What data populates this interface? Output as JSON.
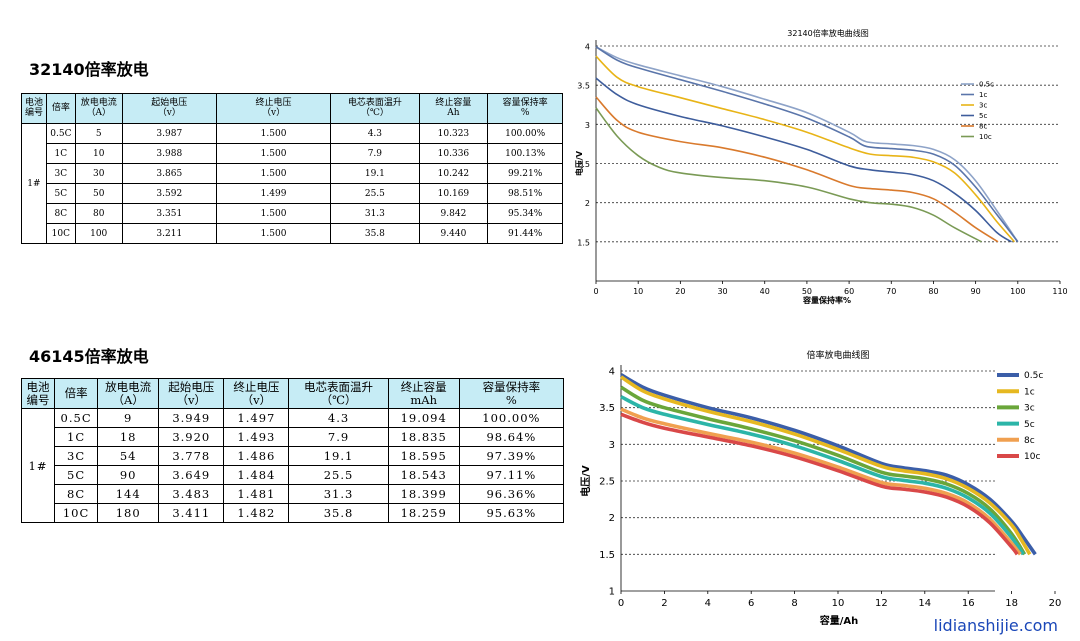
{
  "sections": [
    {
      "title": "32140倍率放电",
      "table": {
        "headers": [
          "电池\n编号",
          "倍率",
          "放电电流\n（A）",
          "起始电压\n（v）",
          "终止电压\n（v）",
          "电芯表面温升\n（℃）",
          "终止容量\nAh",
          "容量保持率\n%"
        ],
        "cell_id": "1#",
        "rows": [
          [
            "0.5C",
            "5",
            "3.987",
            "1.500",
            "4.3",
            "10.323",
            "100.00%"
          ],
          [
            "1C",
            "10",
            "3.988",
            "1.500",
            "7.9",
            "10.336",
            "100.13%"
          ],
          [
            "3C",
            "30",
            "3.865",
            "1.500",
            "19.1",
            "10.242",
            "99.21%"
          ],
          [
            "5C",
            "50",
            "3.592",
            "1.499",
            "25.5",
            "10.169",
            "98.51%"
          ],
          [
            "8C",
            "80",
            "3.351",
            "1.500",
            "31.3",
            "9.842",
            "95.34%"
          ],
          [
            "10C",
            "100",
            "3.211",
            "1.500",
            "35.8",
            "9.440",
            "91.44%"
          ]
        ]
      }
    },
    {
      "title": "46145倍率放电",
      "table": {
        "headers": [
          "电池\n编号",
          "倍率",
          "放电电流\n（A）",
          "起始电压\n（v）",
          "终止电压\n（v）",
          "电芯表面温升\n（℃）",
          "终止容量\nmAh",
          "容量保持率\n%"
        ],
        "cell_id": "1#",
        "rows": [
          [
            "0.5C",
            "9",
            "3.949",
            "1.497",
            "4.3",
            "19.094",
            "100.00%"
          ],
          [
            "1C",
            "18",
            "3.920",
            "1.493",
            "7.9",
            "18.835",
            "98.64%"
          ],
          [
            "3C",
            "54",
            "3.778",
            "1.486",
            "19.1",
            "18.595",
            "97.39%"
          ],
          [
            "5C",
            "90",
            "3.649",
            "1.484",
            "25.5",
            "18.543",
            "97.11%"
          ],
          [
            "8C",
            "144",
            "3.483",
            "1.481",
            "31.3",
            "18.399",
            "96.36%"
          ],
          [
            "10C",
            "180",
            "3.411",
            "1.482",
            "35.8",
            "18.259",
            "95.63%"
          ]
        ]
      }
    }
  ],
  "watermark": "lidianshijie.com",
  "chart_data": [
    {
      "type": "line",
      "title": "32140倍率放电曲线图",
      "xlabel": "容量保持率%",
      "ylabel": "电压/V",
      "xlim": [
        0,
        110
      ],
      "ylim": [
        1,
        4
      ],
      "xticks": [
        0,
        10,
        20,
        30,
        40,
        50,
        60,
        70,
        80,
        90,
        100,
        110
      ],
      "yticks": [
        1.5,
        2,
        2.5,
        3,
        3.5,
        4
      ],
      "ytick_labels": [
        "1.5",
        "2",
        "2.5",
        "3",
        "3.5",
        "4"
      ],
      "grid": "horizontal dotted",
      "legend": "right",
      "series": [
        {
          "name": "0.5c",
          "color": "#8ea3c8",
          "x": [
            0,
            5,
            10,
            20,
            30,
            40,
            50,
            60,
            64,
            70,
            75,
            80,
            85,
            90,
            95,
            100
          ],
          "y": [
            3.99,
            3.85,
            3.76,
            3.62,
            3.48,
            3.32,
            3.15,
            2.9,
            2.78,
            2.75,
            2.73,
            2.68,
            2.55,
            2.28,
            1.9,
            1.5
          ]
        },
        {
          "name": "1c",
          "color": "#5a75aa",
          "x": [
            0,
            5,
            10,
            20,
            30,
            40,
            50,
            60,
            64,
            70,
            75,
            80,
            85,
            90,
            95,
            100
          ],
          "y": [
            3.99,
            3.82,
            3.72,
            3.57,
            3.42,
            3.26,
            3.08,
            2.84,
            2.72,
            2.69,
            2.67,
            2.62,
            2.48,
            2.2,
            1.85,
            1.5
          ]
        },
        {
          "name": "3c",
          "color": "#e8b417",
          "x": [
            0,
            5,
            10,
            20,
            30,
            40,
            50,
            60,
            65,
            70,
            75,
            80,
            85,
            90,
            95,
            99.2
          ],
          "y": [
            3.87,
            3.6,
            3.48,
            3.34,
            3.2,
            3.06,
            2.9,
            2.7,
            2.62,
            2.6,
            2.58,
            2.52,
            2.38,
            2.1,
            1.76,
            1.5
          ]
        },
        {
          "name": "5c",
          "color": "#3e5d9c",
          "x": [
            0,
            5,
            10,
            20,
            30,
            40,
            50,
            60,
            65,
            70,
            75,
            80,
            85,
            90,
            95,
            98.5
          ],
          "y": [
            3.59,
            3.38,
            3.25,
            3.1,
            2.98,
            2.84,
            2.68,
            2.47,
            2.42,
            2.39,
            2.36,
            2.28,
            2.12,
            1.9,
            1.62,
            1.5
          ]
        },
        {
          "name": "8c",
          "color": "#d97a2d",
          "x": [
            0,
            5,
            10,
            20,
            30,
            40,
            50,
            60,
            65,
            70,
            75,
            80,
            85,
            90,
            95.3
          ],
          "y": [
            3.35,
            3.05,
            2.9,
            2.78,
            2.7,
            2.58,
            2.42,
            2.22,
            2.18,
            2.16,
            2.13,
            2.05,
            1.88,
            1.68,
            1.5
          ]
        },
        {
          "name": "10c",
          "color": "#7a9a55",
          "x": [
            0,
            5,
            10,
            15,
            20,
            30,
            40,
            50,
            60,
            65,
            70,
            75,
            80,
            85,
            91.4
          ],
          "y": [
            3.21,
            2.85,
            2.6,
            2.45,
            2.38,
            2.32,
            2.28,
            2.2,
            2.05,
            2.0,
            1.98,
            1.94,
            1.84,
            1.68,
            1.5
          ]
        }
      ]
    },
    {
      "type": "line",
      "title": "倍率放电曲线图",
      "xlabel": "容量/Ah",
      "ylabel": "电压/V",
      "xlim": [
        0,
        20
      ],
      "ylim": [
        1,
        4
      ],
      "xticks": [
        0,
        2,
        4,
        6,
        8,
        10,
        12,
        14,
        16,
        18,
        20
      ],
      "yticks": [
        1,
        1.5,
        2,
        2.5,
        3,
        3.5,
        4
      ],
      "ytick_labels": [
        "1",
        "1.5",
        "2",
        "2.5",
        "3",
        "3.5",
        "4"
      ],
      "grid": "horizontal dotted",
      "legend": "right",
      "series": [
        {
          "name": "0.5c",
          "color": "#3b5ea8",
          "x": [
            0,
            1,
            2,
            4,
            6,
            8,
            10,
            12,
            13,
            14,
            15,
            16,
            17,
            18,
            18.5,
            19.09
          ],
          "y": [
            3.95,
            3.78,
            3.67,
            3.5,
            3.36,
            3.19,
            2.98,
            2.74,
            2.68,
            2.64,
            2.58,
            2.45,
            2.25,
            1.95,
            1.75,
            1.5
          ]
        },
        {
          "name": "1c",
          "color": "#e6b820",
          "x": [
            0,
            1,
            2,
            4,
            6,
            8,
            10,
            12,
            13,
            14,
            15,
            16,
            17,
            18,
            18.4,
            18.84
          ],
          "y": [
            3.92,
            3.73,
            3.62,
            3.45,
            3.31,
            3.14,
            2.93,
            2.7,
            2.64,
            2.6,
            2.53,
            2.4,
            2.2,
            1.9,
            1.72,
            1.5
          ]
        },
        {
          "name": "3c",
          "color": "#6aa63a",
          "x": [
            0,
            1,
            2,
            4,
            6,
            8,
            10,
            12,
            13,
            14,
            15,
            16,
            17,
            18,
            18.6
          ],
          "y": [
            3.78,
            3.6,
            3.5,
            3.35,
            3.21,
            3.05,
            2.85,
            2.62,
            2.57,
            2.53,
            2.46,
            2.33,
            2.12,
            1.78,
            1.5
          ]
        },
        {
          "name": "5c",
          "color": "#2cb5a8",
          "x": [
            0,
            1,
            2,
            4,
            6,
            8,
            10,
            12,
            13,
            14,
            15,
            16,
            17,
            18,
            18.54
          ],
          "y": [
            3.65,
            3.5,
            3.41,
            3.27,
            3.14,
            2.98,
            2.78,
            2.56,
            2.51,
            2.47,
            2.4,
            2.27,
            2.06,
            1.73,
            1.5
          ]
        },
        {
          "name": "8c",
          "color": "#f0a050",
          "x": [
            0,
            1,
            2,
            4,
            6,
            8,
            10,
            12,
            13,
            14,
            15,
            16,
            17,
            18,
            18.4
          ],
          "y": [
            3.48,
            3.36,
            3.28,
            3.15,
            3.03,
            2.88,
            2.69,
            2.48,
            2.44,
            2.4,
            2.33,
            2.2,
            1.98,
            1.65,
            1.5
          ]
        },
        {
          "name": "10c",
          "color": "#d94848",
          "x": [
            0,
            1,
            2,
            4,
            6,
            8,
            10,
            12,
            13,
            14,
            15,
            16,
            17,
            18,
            18.26
          ],
          "y": [
            3.41,
            3.3,
            3.22,
            3.1,
            2.98,
            2.83,
            2.64,
            2.43,
            2.39,
            2.35,
            2.28,
            2.15,
            1.93,
            1.6,
            1.5
          ]
        }
      ]
    }
  ]
}
